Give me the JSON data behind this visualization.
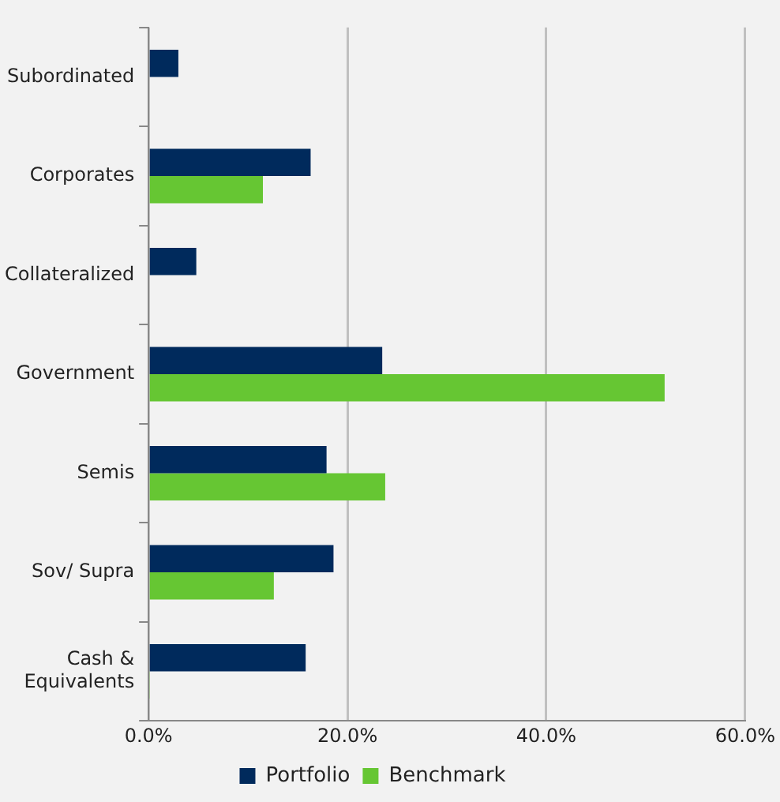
{
  "chart_data": {
    "type": "bar",
    "orientation": "horizontal",
    "categories": [
      "Subordinated",
      "Corporates",
      "Collateralized",
      "Government",
      "Semis",
      "Sov/ Supra",
      "Cash & Equivalents"
    ],
    "series": [
      {
        "name": "Portfolio",
        "color": "#002a5c",
        "values": [
          3.0,
          16.3,
          4.8,
          23.5,
          17.9,
          18.6,
          15.8
        ]
      },
      {
        "name": "Benchmark",
        "color": "#66c633",
        "values": [
          null,
          11.5,
          null,
          51.9,
          23.8,
          12.6,
          0.1
        ]
      }
    ],
    "xlim": [
      0,
      60
    ],
    "xticks": [
      {
        "value": 0,
        "label": "0.0%"
      },
      {
        "value": 20,
        "label": "20.0%"
      },
      {
        "value": 40,
        "label": "40.0%"
      },
      {
        "value": 60,
        "label": "60.0%"
      }
    ],
    "grid": "x",
    "legend": "bottom"
  }
}
